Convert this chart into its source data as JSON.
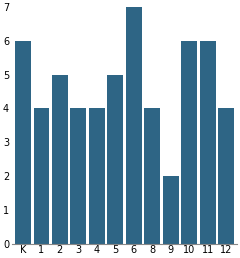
{
  "categories": [
    "K",
    "1",
    "2",
    "3",
    "4",
    "5",
    "6",
    "8",
    "9",
    "10",
    "11",
    "12"
  ],
  "values": [
    6,
    4,
    5,
    4,
    4,
    5,
    7,
    4,
    2,
    6,
    6,
    4
  ],
  "bar_color": "#2e6585",
  "ylim": [
    0,
    7
  ],
  "yticks": [
    0,
    1,
    2,
    3,
    4,
    5,
    6,
    7
  ],
  "background_color": "#ffffff",
  "bar_width": 0.85
}
